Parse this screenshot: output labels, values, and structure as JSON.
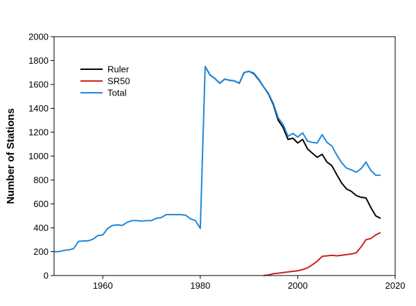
{
  "chart_data": {
    "type": "line",
    "title": "",
    "xlabel": "",
    "ylabel": "Number of Stations",
    "xlim": [
      1950,
      2020
    ],
    "ylim": [
      0,
      2000
    ],
    "xticks": [
      1960,
      1980,
      2000,
      2020
    ],
    "yticks": [
      0,
      200,
      400,
      600,
      800,
      1000,
      1200,
      1400,
      1600,
      1800,
      2000
    ],
    "grid": false,
    "legend": "top-left",
    "series": [
      {
        "name": "Ruler",
        "color": "#000000",
        "points": [
          [
            1981,
            1750
          ],
          [
            1982,
            1680
          ],
          [
            1983,
            1650
          ],
          [
            1984,
            1610
          ],
          [
            1985,
            1645
          ],
          [
            1986,
            1635
          ],
          [
            1987,
            1630
          ],
          [
            1988,
            1610
          ],
          [
            1989,
            1700
          ],
          [
            1990,
            1710
          ],
          [
            1991,
            1690
          ],
          [
            1992,
            1640
          ],
          [
            1993,
            1580
          ],
          [
            1994,
            1520
          ],
          [
            1995,
            1430
          ],
          [
            1996,
            1300
          ],
          [
            1997,
            1240
          ],
          [
            1998,
            1140
          ],
          [
            1999,
            1150
          ],
          [
            2000,
            1110
          ],
          [
            2001,
            1140
          ],
          [
            2002,
            1060
          ],
          [
            2003,
            1025
          ],
          [
            2004,
            990
          ],
          [
            2005,
            1015
          ],
          [
            2006,
            950
          ],
          [
            2007,
            920
          ],
          [
            2008,
            845
          ],
          [
            2009,
            775
          ],
          [
            2010,
            725
          ],
          [
            2011,
            705
          ],
          [
            2012,
            670
          ],
          [
            2013,
            655
          ],
          [
            2014,
            650
          ],
          [
            2015,
            570
          ],
          [
            2016,
            500
          ],
          [
            2017,
            478
          ]
        ]
      },
      {
        "name": "SR50",
        "color": "#cc1f1f",
        "points": [
          [
            1993,
            0
          ],
          [
            1994,
            5
          ],
          [
            1995,
            15
          ],
          [
            1996,
            20
          ],
          [
            1997,
            25
          ],
          [
            1998,
            30
          ],
          [
            1999,
            35
          ],
          [
            2000,
            40
          ],
          [
            2001,
            50
          ],
          [
            2002,
            65
          ],
          [
            2003,
            90
          ],
          [
            2004,
            120
          ],
          [
            2005,
            160
          ],
          [
            2006,
            165
          ],
          [
            2007,
            170
          ],
          [
            2008,
            165
          ],
          [
            2009,
            170
          ],
          [
            2010,
            175
          ],
          [
            2011,
            180
          ],
          [
            2012,
            190
          ],
          [
            2013,
            240
          ],
          [
            2014,
            300
          ],
          [
            2015,
            310
          ],
          [
            2016,
            340
          ],
          [
            2017,
            360
          ]
        ]
      },
      {
        "name": "Total",
        "color": "#1f86d8",
        "points": [
          [
            1950,
            200
          ],
          [
            1951,
            200
          ],
          [
            1952,
            210
          ],
          [
            1953,
            215
          ],
          [
            1954,
            225
          ],
          [
            1955,
            285
          ],
          [
            1956,
            290
          ],
          [
            1957,
            290
          ],
          [
            1958,
            305
          ],
          [
            1959,
            335
          ],
          [
            1960,
            340
          ],
          [
            1961,
            395
          ],
          [
            1962,
            420
          ],
          [
            1963,
            425
          ],
          [
            1964,
            420
          ],
          [
            1965,
            445
          ],
          [
            1966,
            460
          ],
          [
            1967,
            460
          ],
          [
            1968,
            455
          ],
          [
            1969,
            460
          ],
          [
            1970,
            460
          ],
          [
            1971,
            480
          ],
          [
            1972,
            485
          ],
          [
            1973,
            510
          ],
          [
            1974,
            510
          ],
          [
            1975,
            510
          ],
          [
            1976,
            510
          ],
          [
            1977,
            505
          ],
          [
            1978,
            475
          ],
          [
            1979,
            460
          ],
          [
            1980,
            395
          ],
          [
            1981,
            1750
          ],
          [
            1982,
            1680
          ],
          [
            1983,
            1650
          ],
          [
            1984,
            1610
          ],
          [
            1985,
            1645
          ],
          [
            1986,
            1635
          ],
          [
            1987,
            1630
          ],
          [
            1988,
            1610
          ],
          [
            1989,
            1700
          ],
          [
            1990,
            1710
          ],
          [
            1991,
            1695
          ],
          [
            1992,
            1645
          ],
          [
            1993,
            1580
          ],
          [
            1994,
            1525
          ],
          [
            1995,
            1440
          ],
          [
            1996,
            1320
          ],
          [
            1997,
            1265
          ],
          [
            1998,
            1165
          ],
          [
            1999,
            1190
          ],
          [
            2000,
            1160
          ],
          [
            2001,
            1195
          ],
          [
            2002,
            1125
          ],
          [
            2003,
            1115
          ],
          [
            2004,
            1110
          ],
          [
            2005,
            1180
          ],
          [
            2006,
            1115
          ],
          [
            2007,
            1085
          ],
          [
            2008,
            1010
          ],
          [
            2009,
            945
          ],
          [
            2010,
            900
          ],
          [
            2011,
            885
          ],
          [
            2012,
            865
          ],
          [
            2013,
            895
          ],
          [
            2014,
            950
          ],
          [
            2015,
            880
          ],
          [
            2016,
            840
          ],
          [
            2017,
            840
          ]
        ]
      }
    ]
  }
}
